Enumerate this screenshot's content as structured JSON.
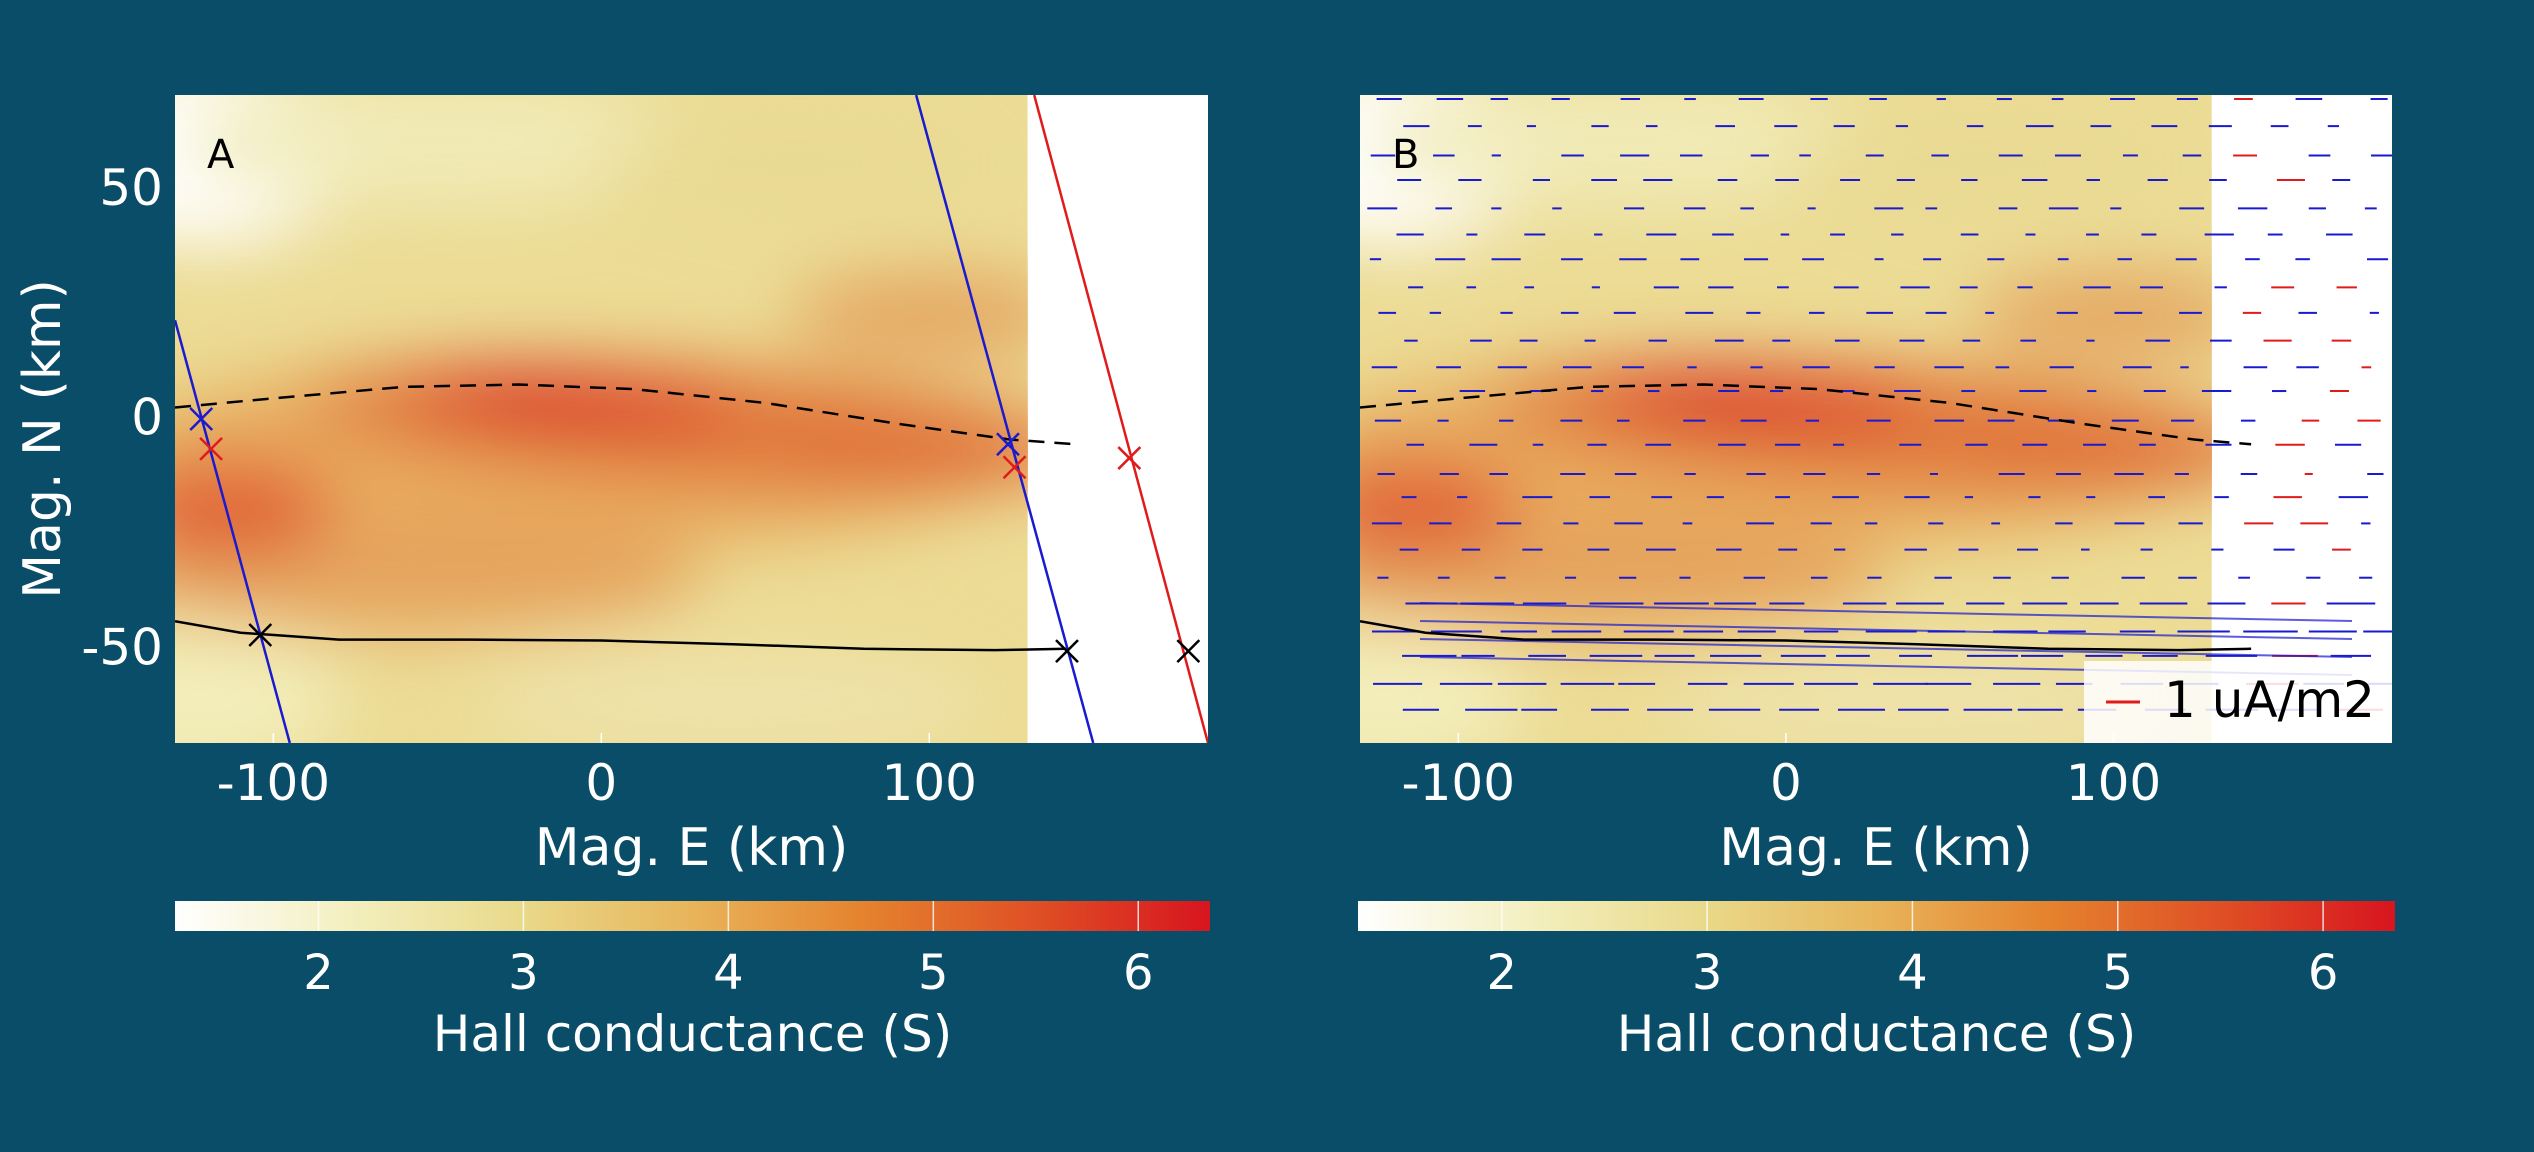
{
  "figure": {
    "background": "#0a4d68",
    "text_color": "#ffffff"
  },
  "colormap": [
    "#ffffff",
    "#f3efbf",
    "#e9d98a",
    "#e8b45a",
    "#e5822e",
    "#df4f25",
    "#d7151f"
  ],
  "chart_data": [
    {
      "type": "heatmap",
      "panel_label": "A",
      "xlabel": "Mag. E (km)",
      "ylabel": "Mag. N (km)",
      "xlim": [
        -130,
        185
      ],
      "ylim": [
        -71,
        70
      ],
      "xticks": [
        -100,
        0,
        100
      ],
      "yticks": [
        50,
        0,
        -50
      ],
      "heatmap_x_extent": [
        -130,
        130
      ],
      "colorbar": {
        "label": "Hall conductance (S)",
        "range": [
          1.3,
          6.35
        ],
        "ticks": [
          2,
          3,
          4,
          5,
          6
        ]
      },
      "overlays": {
        "dashed_boundary": {
          "color": "#000000",
          "x": [
            -130,
            -100,
            -60,
            -25,
            10,
            50,
            90,
            125,
            145
          ],
          "y": [
            2,
            4,
            6.5,
            7,
            6,
            3,
            -1.5,
            -5,
            -6
          ]
        },
        "solid_boundary": {
          "color": "#000000",
          "x": [
            -130,
            -110,
            -80,
            -40,
            0,
            40,
            80,
            120,
            142
          ],
          "y": [
            -44.5,
            -47,
            -48.5,
            -48.5,
            -48.7,
            -49.5,
            -50.5,
            -50.8,
            -50.5
          ]
        },
        "track_lines": [
          {
            "color": "#1a1acf",
            "x": [
              -130,
              -95
            ],
            "y": [
              21,
              -71
            ]
          },
          {
            "color": "#1a1acf",
            "x": [
              96,
              150
            ],
            "y": [
              70,
              -71
            ]
          },
          {
            "color": "#e01b1b",
            "x": [
              132,
              185
            ],
            "y": [
              70,
              -71
            ]
          }
        ],
        "markers": [
          {
            "color": "#1a1acf",
            "x": -122,
            "y": -0.5
          },
          {
            "color": "#e01b1b",
            "x": -119,
            "y": -7
          },
          {
            "color": "#1a1acf",
            "x": 124,
            "y": -6
          },
          {
            "color": "#e01b1b",
            "x": 126,
            "y": -11
          },
          {
            "color": "#e01b1b",
            "x": 161,
            "y": -9
          },
          {
            "color": "#000000",
            "x": -104,
            "y": -47.5
          },
          {
            "color": "#000000",
            "x": 142,
            "y": -51
          },
          {
            "color": "#000000",
            "x": 179,
            "y": -51
          }
        ]
      }
    },
    {
      "type": "heatmap",
      "panel_label": "B",
      "xlabel": "Mag. E (km)",
      "ylabel": "",
      "xlim": [
        -130,
        185
      ],
      "ylim": [
        -71,
        70
      ],
      "xticks": [
        -100,
        0,
        100
      ],
      "yticks": [],
      "heatmap_x_extent": [
        -130,
        130
      ],
      "colorbar": {
        "label": "Hall conductance (S)",
        "range": [
          1.3,
          6.35
        ],
        "ticks": [
          2,
          3,
          4,
          5,
          6
        ]
      },
      "legend": {
        "entries": [
          "1 uA/m2"
        ],
        "color": "#e01b1b",
        "placement": "bottom-right"
      },
      "overlays": {
        "dashed_boundary": {
          "color": "#000000",
          "x": [
            -130,
            -100,
            -60,
            -25,
            10,
            50,
            90,
            125,
            142
          ],
          "y": [
            2,
            4,
            6.5,
            7,
            6,
            3,
            -1.5,
            -5,
            -6
          ]
        },
        "solid_boundary": {
          "color": "#000000",
          "x": [
            -130,
            -110,
            -80,
            -40,
            0,
            40,
            80,
            120,
            142
          ],
          "y": [
            -44.5,
            -47,
            -48.5,
            -48.5,
            -48.7,
            -49.5,
            -50.5,
            -50.8,
            -50.5
          ]
        },
        "current_arrows_color": "#1a1acf"
      }
    }
  ]
}
